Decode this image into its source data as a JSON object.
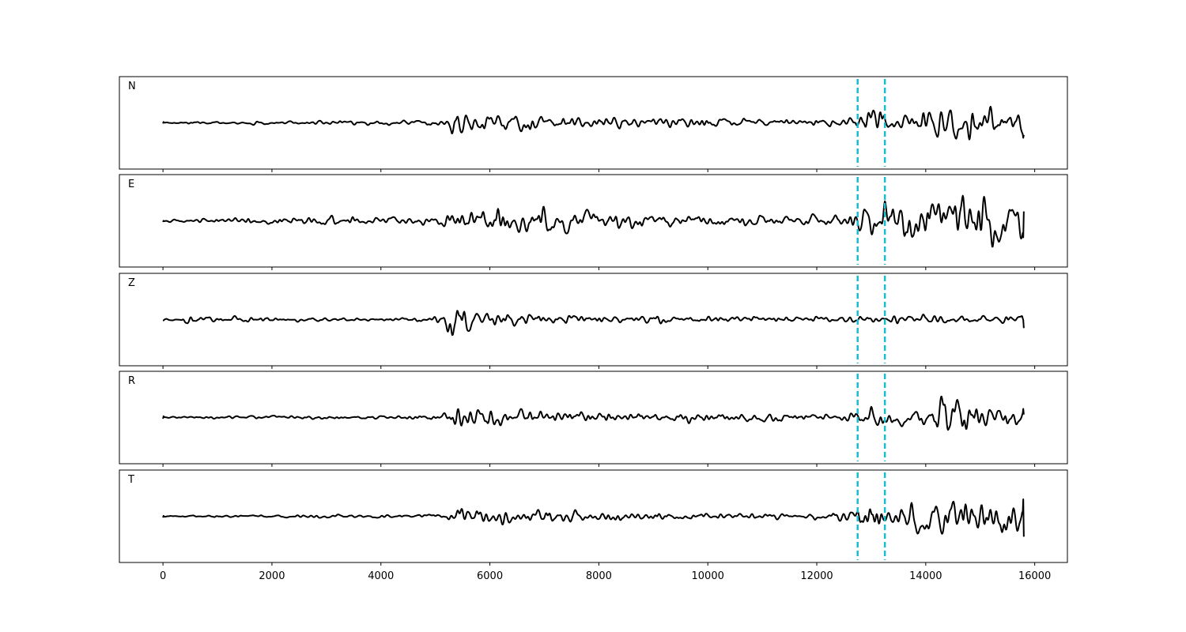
{
  "chart_data": {
    "type": "line",
    "title": "",
    "xlabel": "",
    "ylabel": "",
    "xlim": [
      -800,
      16600
    ],
    "x_start": 0,
    "x_end": 15800,
    "xticks": [
      0,
      2000,
      4000,
      6000,
      8000,
      10000,
      12000,
      14000,
      16000
    ],
    "xtick_labels": [
      "0",
      "2000",
      "4000",
      "6000",
      "8000",
      "10000",
      "12000",
      "14000",
      "16000"
    ],
    "markers": [
      12750,
      13250
    ],
    "marker_color": "#17becf",
    "trace_color": "#000000",
    "grid": false,
    "series": [
      {
        "name": "N",
        "envelope": [
          [
            0,
            0.03
          ],
          [
            500,
            0.05
          ],
          [
            1000,
            0.05
          ],
          [
            1500,
            0.06
          ],
          [
            2000,
            0.06
          ],
          [
            2500,
            0.07
          ],
          [
            3000,
            0.07
          ],
          [
            3500,
            0.08
          ],
          [
            4000,
            0.08
          ],
          [
            4500,
            0.09
          ],
          [
            5000,
            0.12
          ],
          [
            5250,
            0.18
          ],
          [
            5300,
            0.55
          ],
          [
            5500,
            0.4
          ],
          [
            6000,
            0.4
          ],
          [
            6500,
            0.32
          ],
          [
            7000,
            0.28
          ],
          [
            7500,
            0.26
          ],
          [
            8000,
            0.24
          ],
          [
            8500,
            0.22
          ],
          [
            9000,
            0.22
          ],
          [
            9500,
            0.2
          ],
          [
            10000,
            0.18
          ],
          [
            10500,
            0.16
          ],
          [
            11000,
            0.15
          ],
          [
            11500,
            0.15
          ],
          [
            12000,
            0.15
          ],
          [
            12500,
            0.18
          ],
          [
            12750,
            0.35
          ],
          [
            13000,
            0.6
          ],
          [
            13250,
            0.4
          ],
          [
            13500,
            0.35
          ],
          [
            14000,
            0.55
          ],
          [
            14500,
            0.85
          ],
          [
            14700,
            0.9
          ],
          [
            15000,
            0.55
          ],
          [
            15500,
            0.4
          ],
          [
            15800,
            0.35
          ]
        ]
      },
      {
        "name": "E",
        "envelope": [
          [
            0,
            0.03
          ],
          [
            500,
            0.05
          ],
          [
            1000,
            0.07
          ],
          [
            1500,
            0.1
          ],
          [
            2000,
            0.1
          ],
          [
            2500,
            0.15
          ],
          [
            3000,
            0.15
          ],
          [
            3500,
            0.12
          ],
          [
            4000,
            0.12
          ],
          [
            4500,
            0.12
          ],
          [
            5000,
            0.13
          ],
          [
            5300,
            0.25
          ],
          [
            5500,
            0.3
          ],
          [
            6000,
            0.35
          ],
          [
            6500,
            0.38
          ],
          [
            7000,
            0.38
          ],
          [
            7500,
            0.28
          ],
          [
            8000,
            0.25
          ],
          [
            8500,
            0.22
          ],
          [
            9000,
            0.2
          ],
          [
            9500,
            0.18
          ],
          [
            10000,
            0.18
          ],
          [
            10500,
            0.16
          ],
          [
            11000,
            0.14
          ],
          [
            11500,
            0.15
          ],
          [
            12000,
            0.18
          ],
          [
            12500,
            0.22
          ],
          [
            12750,
            0.4
          ],
          [
            13000,
            0.7
          ],
          [
            13250,
            0.6
          ],
          [
            13500,
            0.55
          ],
          [
            14000,
            0.6
          ],
          [
            14500,
            0.65
          ],
          [
            15000,
            0.75
          ],
          [
            15500,
            0.7
          ],
          [
            15800,
            0.55
          ]
        ]
      },
      {
        "name": "Z",
        "envelope": [
          [
            0,
            0.03
          ],
          [
            300,
            0.05
          ],
          [
            450,
            0.22
          ],
          [
            600,
            0.1
          ],
          [
            1000,
            0.08
          ],
          [
            1400,
            0.12
          ],
          [
            2000,
            0.08
          ],
          [
            2500,
            0.06
          ],
          [
            3000,
            0.06
          ],
          [
            3500,
            0.06
          ],
          [
            4000,
            0.06
          ],
          [
            4500,
            0.07
          ],
          [
            5000,
            0.1
          ],
          [
            5200,
            0.25
          ],
          [
            5300,
            0.95
          ],
          [
            5450,
            0.45
          ],
          [
            5700,
            0.3
          ],
          [
            6000,
            0.28
          ],
          [
            6500,
            0.25
          ],
          [
            7000,
            0.18
          ],
          [
            7500,
            0.15
          ],
          [
            8000,
            0.14
          ],
          [
            8500,
            0.13
          ],
          [
            9000,
            0.13
          ],
          [
            9500,
            0.12
          ],
          [
            10000,
            0.12
          ],
          [
            10500,
            0.11
          ],
          [
            11000,
            0.11
          ],
          [
            11500,
            0.11
          ],
          [
            12000,
            0.11
          ],
          [
            12500,
            0.12
          ],
          [
            13000,
            0.13
          ],
          [
            13500,
            0.15
          ],
          [
            14000,
            0.17
          ],
          [
            14500,
            0.18
          ],
          [
            15000,
            0.17
          ],
          [
            15500,
            0.2
          ],
          [
            15800,
            0.2
          ]
        ]
      },
      {
        "name": "R",
        "envelope": [
          [
            0,
            0.03
          ],
          [
            500,
            0.05
          ],
          [
            1000,
            0.05
          ],
          [
            1500,
            0.06
          ],
          [
            2000,
            0.06
          ],
          [
            2500,
            0.07
          ],
          [
            3000,
            0.07
          ],
          [
            3500,
            0.08
          ],
          [
            4000,
            0.08
          ],
          [
            4500,
            0.09
          ],
          [
            5000,
            0.12
          ],
          [
            5250,
            0.18
          ],
          [
            5300,
            0.55
          ],
          [
            5500,
            0.4
          ],
          [
            6000,
            0.4
          ],
          [
            6500,
            0.32
          ],
          [
            7000,
            0.28
          ],
          [
            7500,
            0.26
          ],
          [
            8000,
            0.24
          ],
          [
            8500,
            0.22
          ],
          [
            9000,
            0.22
          ],
          [
            9500,
            0.2
          ],
          [
            10000,
            0.18
          ],
          [
            10500,
            0.16
          ],
          [
            11000,
            0.15
          ],
          [
            11500,
            0.15
          ],
          [
            12000,
            0.15
          ],
          [
            12500,
            0.18
          ],
          [
            12750,
            0.35
          ],
          [
            13000,
            0.6
          ],
          [
            13250,
            0.4
          ],
          [
            13500,
            0.35
          ],
          [
            14000,
            0.6
          ],
          [
            14300,
            0.8
          ],
          [
            14700,
            0.85
          ],
          [
            15000,
            0.55
          ],
          [
            15500,
            0.4
          ],
          [
            15800,
            0.5
          ]
        ]
      },
      {
        "name": "T",
        "envelope": [
          [
            0,
            0.03
          ],
          [
            500,
            0.05
          ],
          [
            1000,
            0.06
          ],
          [
            1500,
            0.06
          ],
          [
            2000,
            0.07
          ],
          [
            2500,
            0.08
          ],
          [
            3000,
            0.08
          ],
          [
            3500,
            0.07
          ],
          [
            4000,
            0.07
          ],
          [
            4500,
            0.07
          ],
          [
            5000,
            0.1
          ],
          [
            5300,
            0.2
          ],
          [
            5500,
            0.35
          ],
          [
            6000,
            0.4
          ],
          [
            6500,
            0.32
          ],
          [
            7000,
            0.3
          ],
          [
            7500,
            0.25
          ],
          [
            8000,
            0.2
          ],
          [
            8500,
            0.18
          ],
          [
            9000,
            0.17
          ],
          [
            9500,
            0.15
          ],
          [
            10000,
            0.15
          ],
          [
            10500,
            0.13
          ],
          [
            11000,
            0.12
          ],
          [
            11500,
            0.12
          ],
          [
            12000,
            0.14
          ],
          [
            12500,
            0.2
          ],
          [
            12750,
            0.35
          ],
          [
            13000,
            0.8
          ],
          [
            13250,
            0.6
          ],
          [
            13500,
            0.45
          ],
          [
            14000,
            0.75
          ],
          [
            14500,
            0.7
          ],
          [
            15000,
            0.85
          ],
          [
            15500,
            0.8
          ],
          [
            15800,
            0.5
          ]
        ]
      }
    ]
  }
}
